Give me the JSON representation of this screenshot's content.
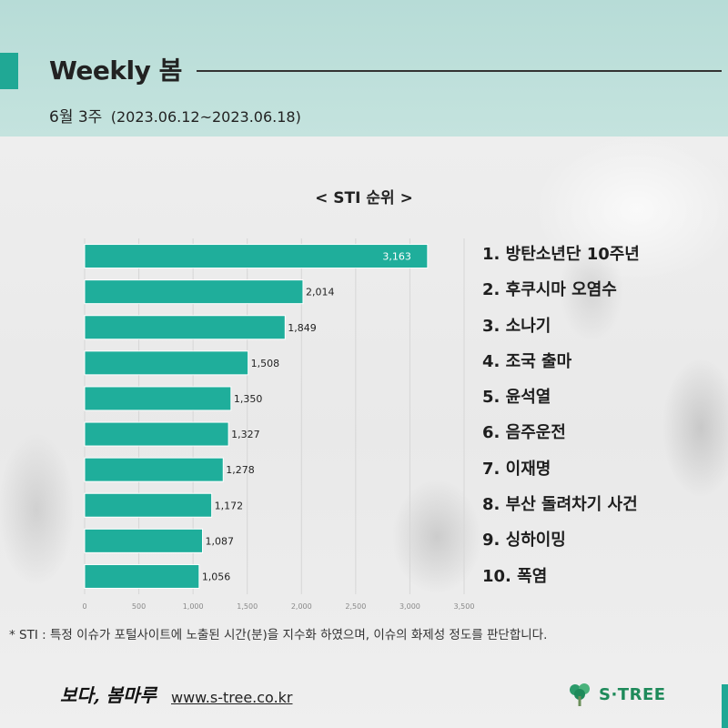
{
  "header": {
    "title": "Weekly 봄",
    "week": "6월 3주",
    "date_range": "(2023.06.12~2023.06.18)"
  },
  "chart_title": "< STI 순위 >",
  "chart_data": {
    "type": "bar",
    "orientation": "horizontal",
    "categories": [
      "방탄소년단 10주년",
      "후쿠시마 오염수",
      "소나기",
      "조국 출마",
      "윤석열",
      "음주운전",
      "이재명",
      "부산 돌려차기 사건",
      "싱하이밍",
      "폭염"
    ],
    "values": [
      3163,
      2014,
      1849,
      1508,
      1350,
      1327,
      1278,
      1172,
      1087,
      1056
    ],
    "value_labels": [
      "3,163",
      "2,014",
      "1,849",
      "1,508",
      "1,350",
      "1,327",
      "1,278",
      "1,172",
      "1,087",
      "1,056"
    ],
    "xlim": [
      0,
      3500
    ],
    "xticks": [
      0,
      500,
      1000,
      1500,
      2000,
      2500,
      3000,
      3500
    ],
    "xtick_labels": [
      "0",
      "500",
      "1,000",
      "1,500",
      "2,000",
      "2,500",
      "3,000",
      "3,500"
    ],
    "grid": true,
    "bar_color": "#1fae9b"
  },
  "ranking": [
    "1. 방탄소년단 10주년",
    "2. 후쿠시마 오염수",
    "3. 소나기",
    "4. 조국 출마",
    "5. 윤석열",
    "6. 음주운전",
    "7. 이재명",
    "8. 부산 돌려차기 사건",
    "9. 싱하이밍",
    "10. 폭염"
  ],
  "footnote": "* STI : 특정 이슈가 포털사이트에 노출된 시간(분)을 지수화 하였으며, 이슈의 화제성 정도를 판단합니다.",
  "footer": {
    "brand": "보다, 봄마루",
    "url": "www.s-tree.co.kr",
    "logo_text": "S·TREE"
  },
  "colors": {
    "accent": "#20a895",
    "header_bg": "#b7dcd7",
    "logo_green": "#1e8a5a"
  }
}
